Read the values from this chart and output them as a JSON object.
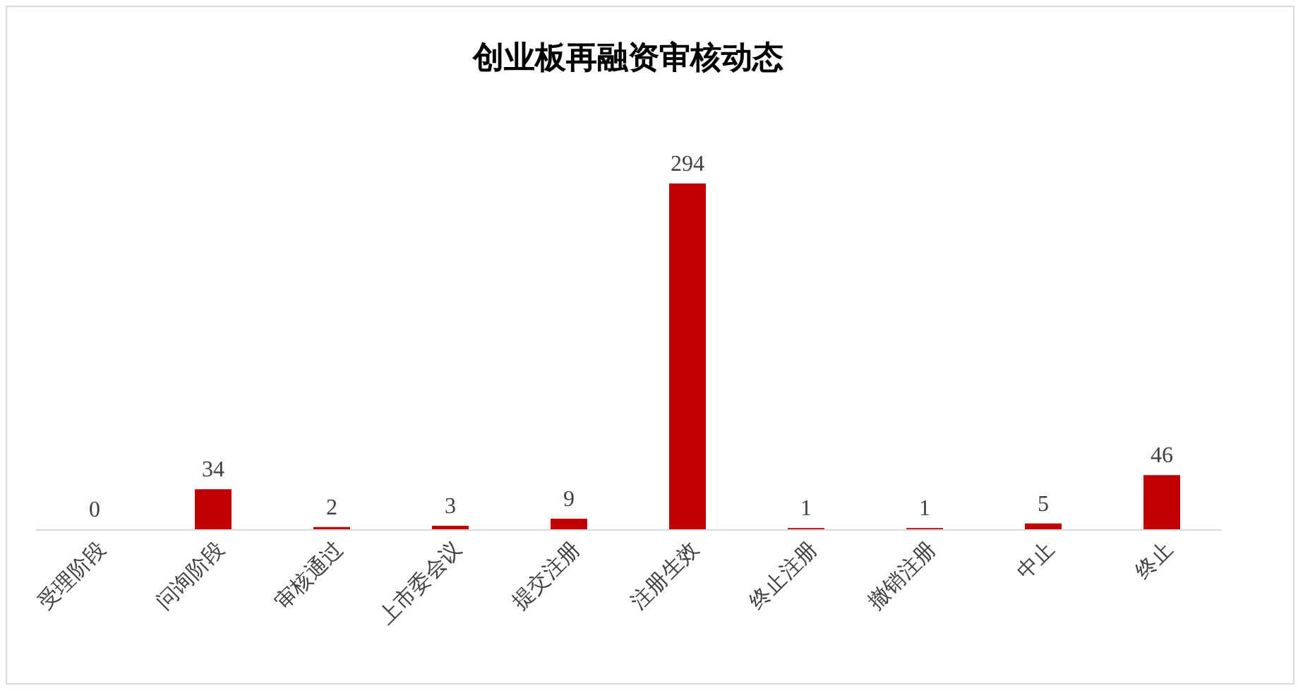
{
  "chart_data": {
    "type": "bar",
    "title": "创业板再融资审核动态",
    "categories": [
      "受理阶段",
      "问询阶段",
      "审核通过",
      "上市委会议",
      "提交注册",
      "注册生效",
      "终止注册",
      "撤销注册",
      "中止",
      "终止"
    ],
    "values": [
      0,
      34,
      2,
      3,
      9,
      294,
      1,
      1,
      5,
      46
    ],
    "color": "#c00000",
    "data_labels": true
  }
}
